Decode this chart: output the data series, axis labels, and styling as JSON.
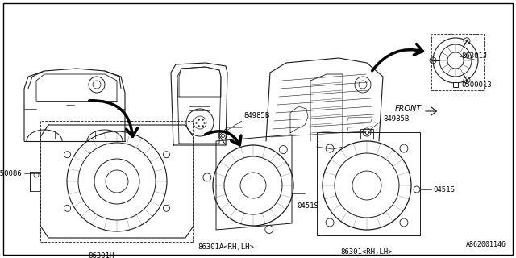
{
  "bg_color": "#ffffff",
  "border_color": "#000000",
  "diagram_id": "A862001146",
  "line_color": "#1a1a1a",
  "text_color": "#000000",
  "font_size": 6.5,
  "fig_w": 6.4,
  "fig_h": 3.2,
  "dpi": 100,
  "xlim": [
    0,
    640
  ],
  "ylim": [
    0,
    320
  ]
}
